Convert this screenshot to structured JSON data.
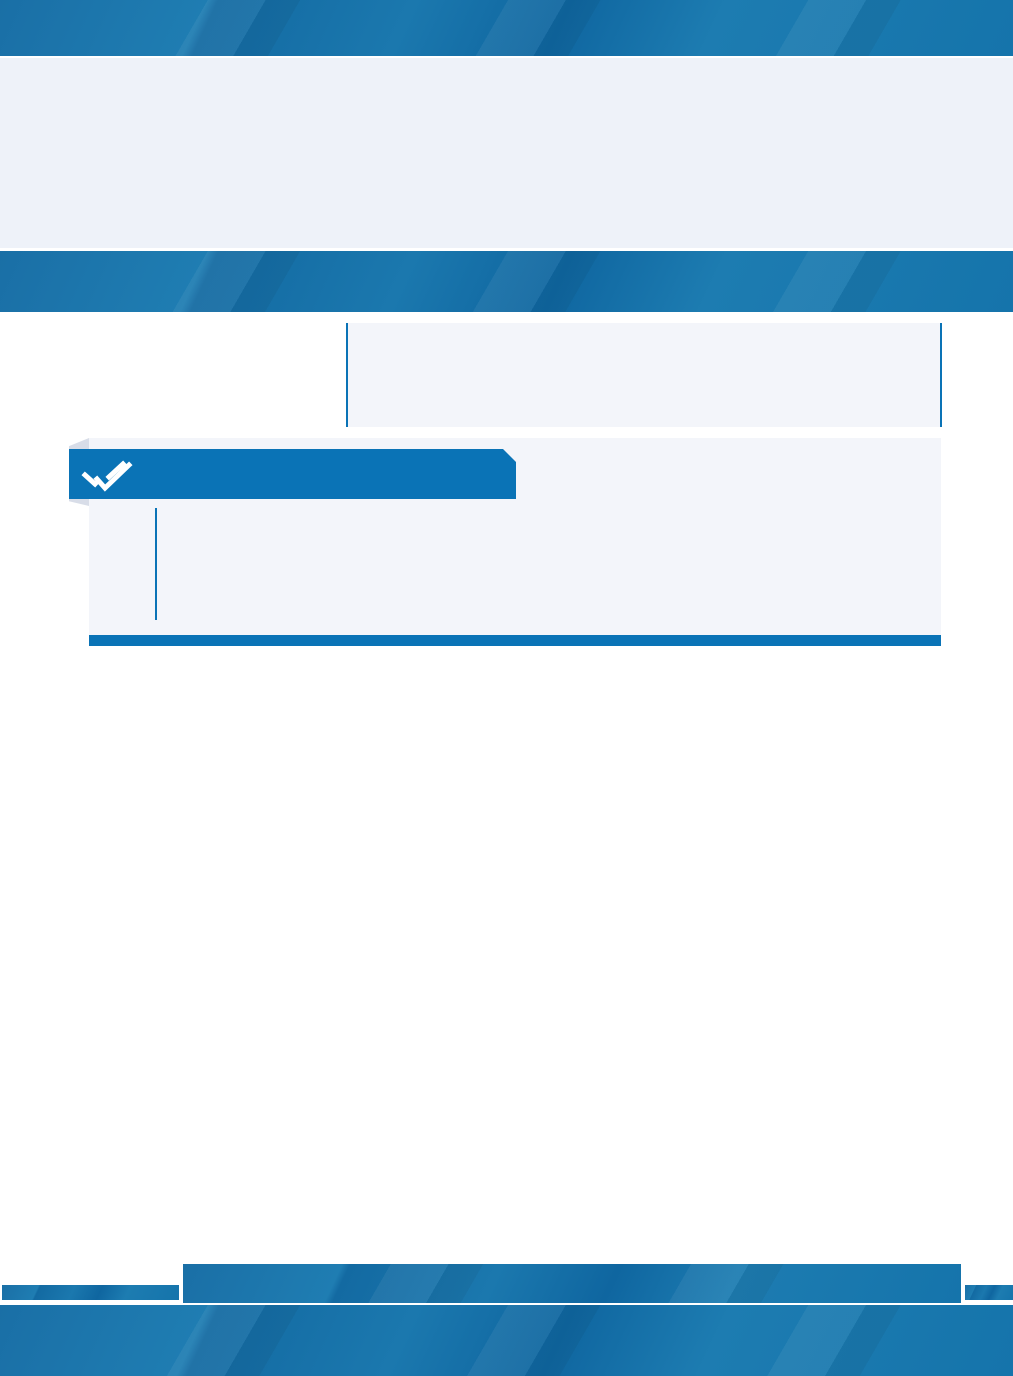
{
  "colors": {
    "brand_blue": "#0a73b6",
    "band_blue": "#1874ab",
    "panel_bg": "#eef2f9",
    "box_bg": "#f3f5fa"
  },
  "icons": {
    "section_header": "double-check-icon"
  }
}
